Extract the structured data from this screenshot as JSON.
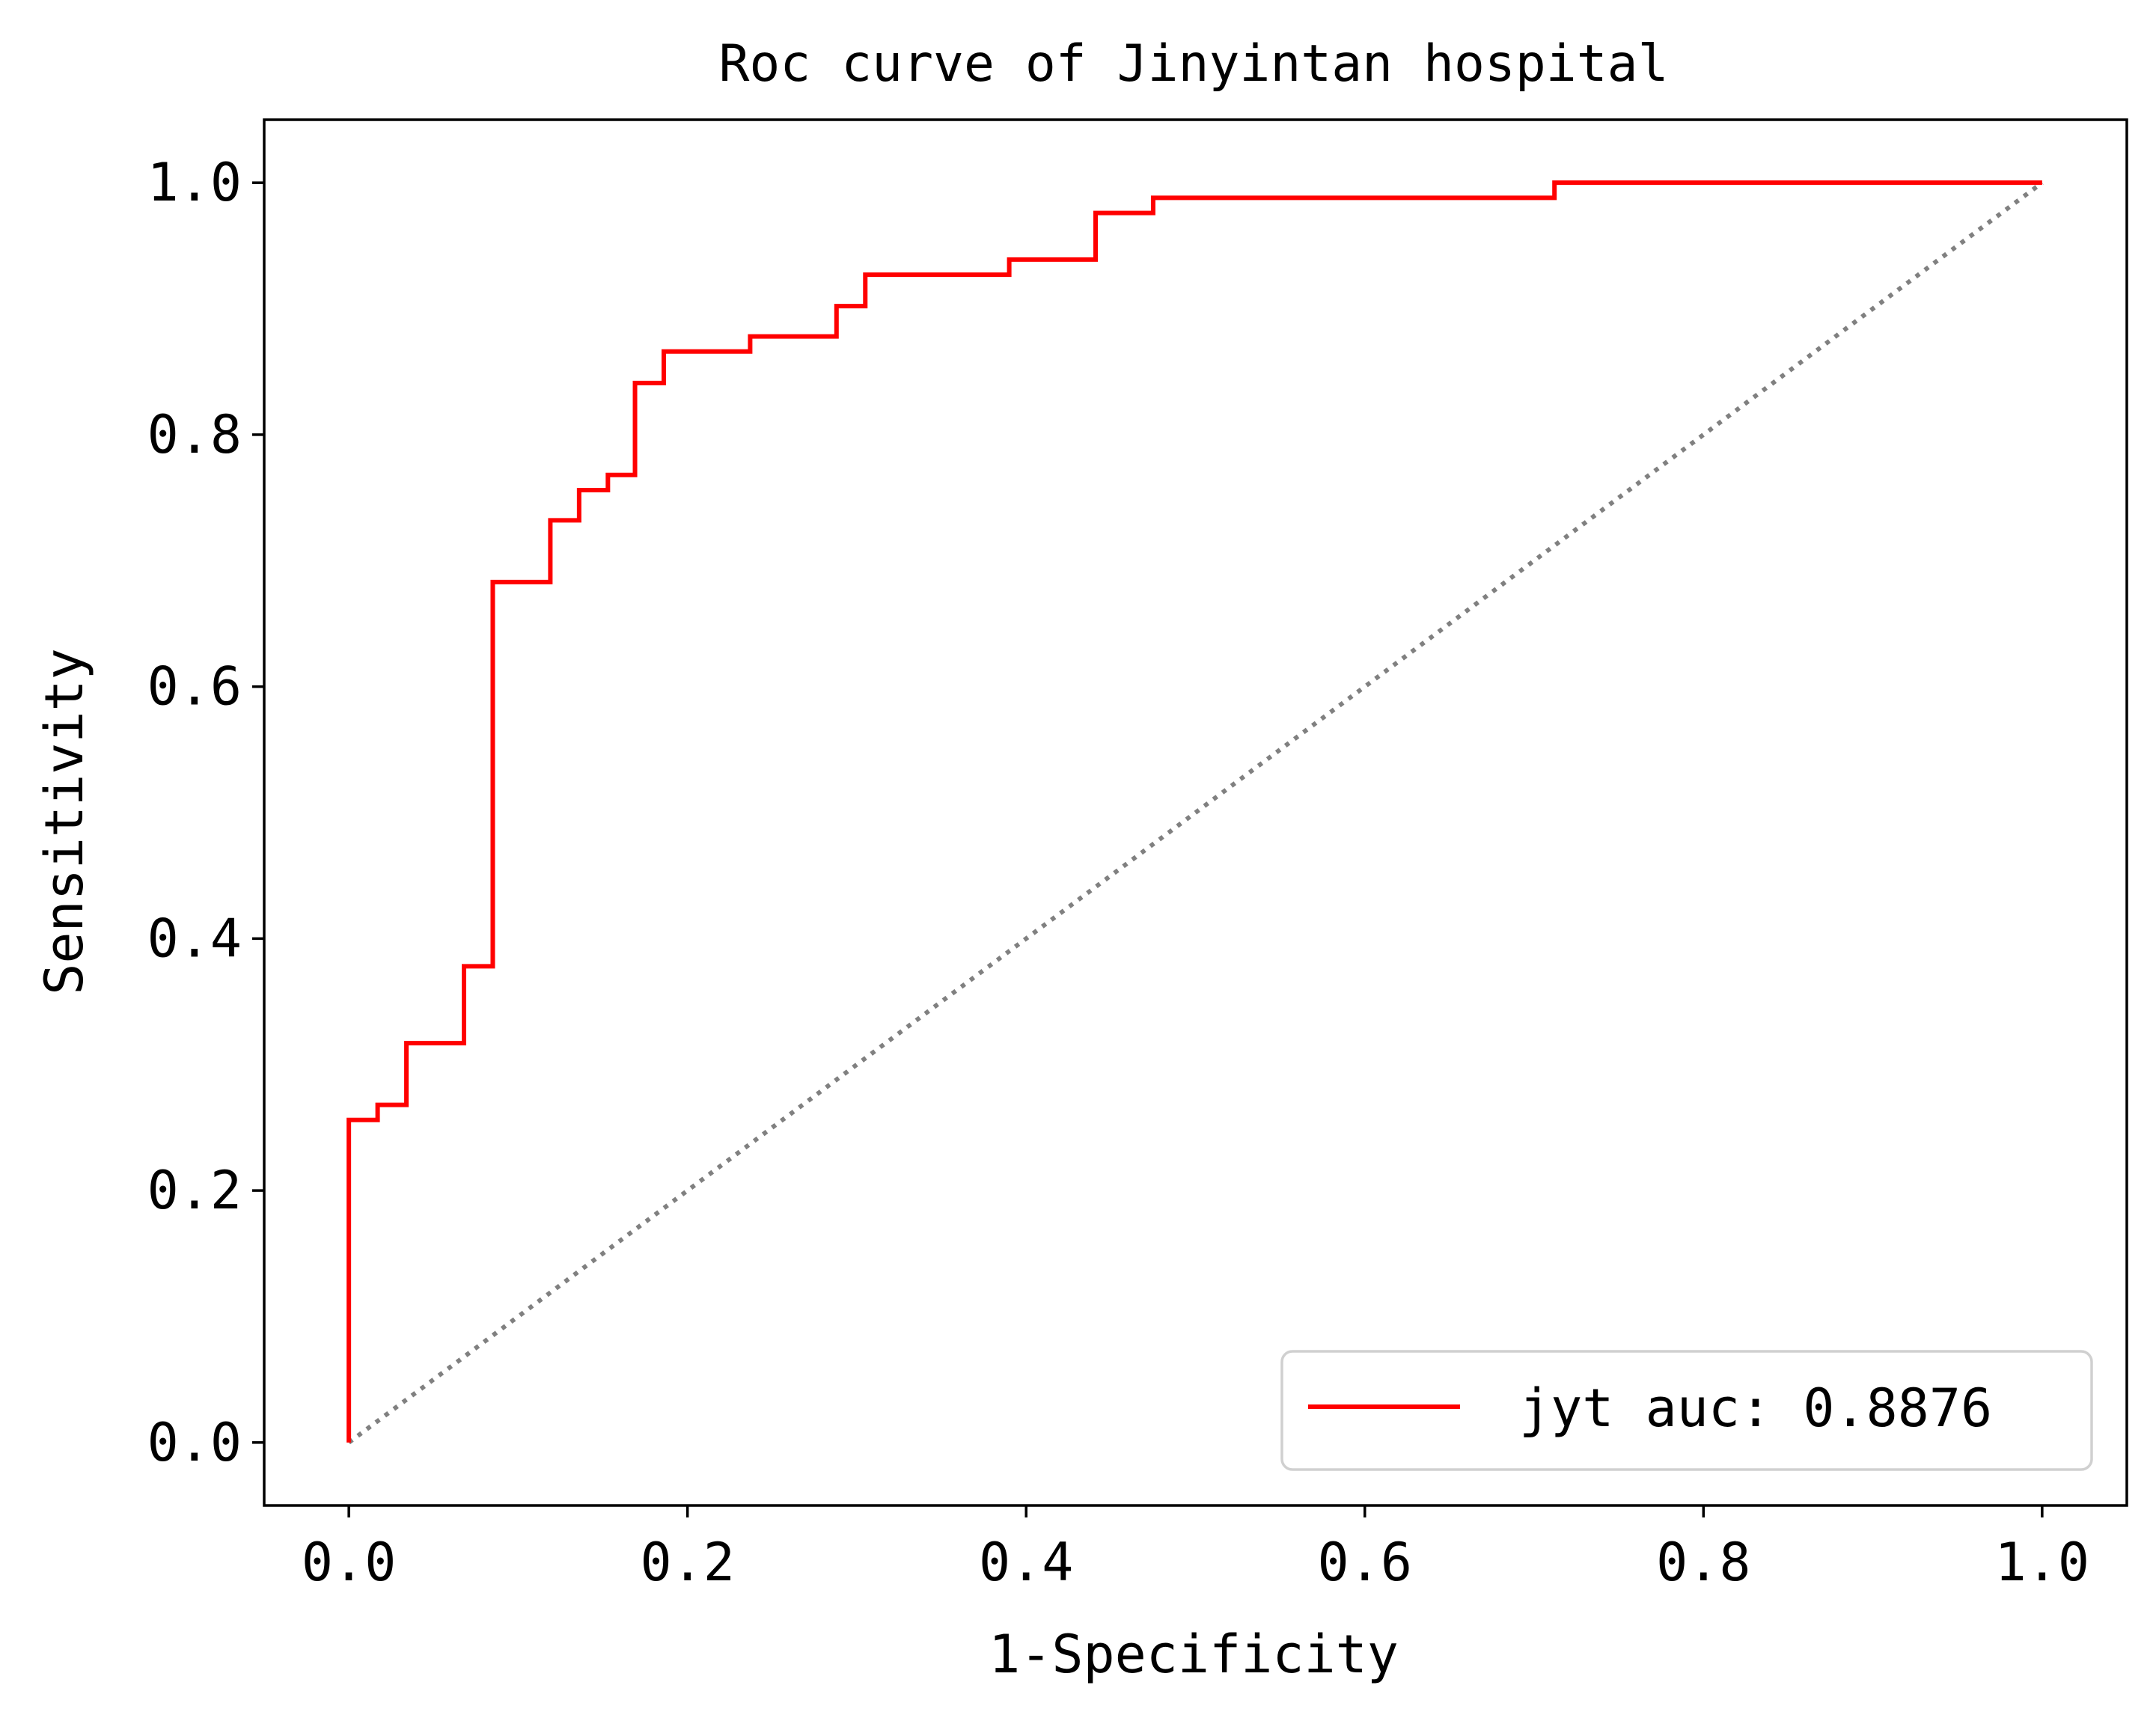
{
  "chart_data": {
    "type": "line",
    "title": "Roc curve of Jinyintan hospital",
    "xlabel": "1-Specificity",
    "ylabel": "Sensitivity",
    "xlim": [
      -0.05,
      1.05
    ],
    "ylim": [
      -0.05,
      1.05
    ],
    "xticks": [
      {
        "value": 0.0,
        "label": "0.0"
      },
      {
        "value": 0.2,
        "label": "0.2"
      },
      {
        "value": 0.4,
        "label": "0.4"
      },
      {
        "value": 0.6,
        "label": "0.6"
      },
      {
        "value": 0.8,
        "label": "0.8"
      },
      {
        "value": 1.0,
        "label": "1.0"
      }
    ],
    "yticks": [
      {
        "value": 0.0,
        "label": "0.0"
      },
      {
        "value": 0.2,
        "label": "0.2"
      },
      {
        "value": 0.4,
        "label": "0.4"
      },
      {
        "value": 0.6,
        "label": "0.6"
      },
      {
        "value": 0.8,
        "label": "0.8"
      },
      {
        "value": 1.0,
        "label": "1.0"
      }
    ],
    "grid": false,
    "legend_position": "bottom-right",
    "series": [
      {
        "name": "jyt auc: 0.8876",
        "color": "#ff0000",
        "line_style": "solid",
        "x": [
          0.0,
          0.0,
          0.017,
          0.017,
          0.034,
          0.034,
          0.068,
          0.068,
          0.085,
          0.085,
          0.119,
          0.119,
          0.136,
          0.136,
          0.153,
          0.153,
          0.169,
          0.169,
          0.186,
          0.186,
          0.237,
          0.237,
          0.288,
          0.288,
          0.305,
          0.305,
          0.39,
          0.39,
          0.441,
          0.441,
          0.475,
          0.475,
          0.712,
          0.712,
          1.0
        ],
        "y": [
          0.0,
          0.256,
          0.256,
          0.268,
          0.268,
          0.317,
          0.317,
          0.378,
          0.378,
          0.683,
          0.683,
          0.732,
          0.732,
          0.756,
          0.756,
          0.768,
          0.768,
          0.841,
          0.841,
          0.866,
          0.866,
          0.878,
          0.878,
          0.902,
          0.902,
          0.927,
          0.927,
          0.939,
          0.939,
          0.976,
          0.976,
          0.988,
          0.988,
          1.0,
          1.0
        ]
      }
    ],
    "reference_line": {
      "color": "#808080",
      "line_style": "dotted",
      "x": [
        0.0,
        1.0
      ],
      "y": [
        0.0,
        1.0
      ]
    }
  }
}
